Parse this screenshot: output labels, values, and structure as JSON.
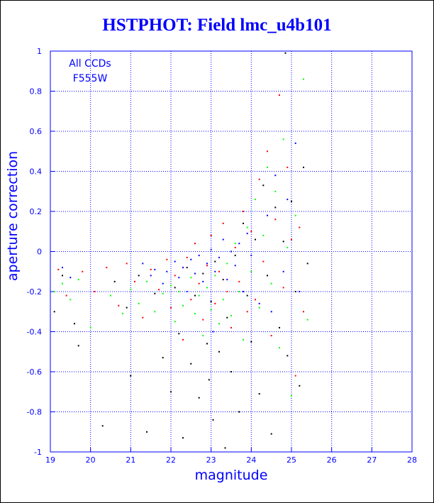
{
  "chart_data": {
    "type": "scatter",
    "title": "HSTPHOT: Field lmc_u4b101",
    "xlabel": "magnitude",
    "ylabel": "aperture correction",
    "xlim": [
      19,
      28
    ],
    "ylim": [
      -1,
      1
    ],
    "x_ticks": [
      "19",
      "20",
      "21",
      "22",
      "23",
      "24",
      "25",
      "26",
      "27",
      "28"
    ],
    "y_ticks": [
      "-1",
      "-0.8",
      "-0.6",
      "-0.4",
      "-0.2",
      "0",
      "0.2",
      "0.4",
      "0.6",
      "0.8",
      "1"
    ],
    "grid": true,
    "annotations": [
      "All CCDs",
      "F555W"
    ],
    "colors": {
      "axes": "#0000ff",
      "grid": "#0000ff",
      "title": "#0000ff"
    },
    "series": [
      {
        "color": "#000000",
        "values": [
          [
            19.1,
            -0.3
          ],
          [
            19.3,
            -0.12
          ],
          [
            19.6,
            -0.36
          ],
          [
            19.7,
            -0.47
          ],
          [
            20.3,
            -0.87
          ],
          [
            20.6,
            -0.15
          ],
          [
            20.9,
            -0.28
          ],
          [
            21.0,
            -0.62
          ],
          [
            21.2,
            -0.12
          ],
          [
            21.4,
            -0.9
          ],
          [
            21.6,
            -0.21
          ],
          [
            21.8,
            -0.53
          ],
          [
            22.0,
            -0.7
          ],
          [
            22.1,
            -0.18
          ],
          [
            22.2,
            -0.41
          ],
          [
            22.3,
            -0.93
          ],
          [
            22.4,
            -0.08
          ],
          [
            22.5,
            -0.56
          ],
          [
            22.6,
            -0.22
          ],
          [
            22.7,
            -0.73
          ],
          [
            22.8,
            -0.11
          ],
          [
            22.9,
            -0.46
          ],
          [
            22.95,
            -0.64
          ],
          [
            23.0,
            -0.25
          ],
          [
            23.05,
            -0.84
          ],
          [
            23.1,
            -0.05
          ],
          [
            23.2,
            -0.5
          ],
          [
            23.3,
            -0.14
          ],
          [
            23.35,
            -0.98
          ],
          [
            23.4,
            -0.33
          ],
          [
            23.5,
            -0.6
          ],
          [
            23.6,
            -0.02
          ],
          [
            23.7,
            -0.8
          ],
          [
            23.8,
            0.14
          ],
          [
            23.9,
            -0.22
          ],
          [
            24.0,
            -0.45
          ],
          [
            24.1,
            0.06
          ],
          [
            24.2,
            -0.71
          ],
          [
            24.3,
            0.33
          ],
          [
            24.4,
            -0.12
          ],
          [
            24.5,
            -0.91
          ],
          [
            24.6,
            0.22
          ],
          [
            24.7,
            -0.38
          ],
          [
            24.8,
            0.05
          ],
          [
            24.85,
            0.99
          ],
          [
            24.9,
            -0.52
          ],
          [
            25.0,
            0.25
          ],
          [
            25.1,
            -0.2
          ],
          [
            25.2,
            -0.67
          ],
          [
            25.3,
            0.42
          ],
          [
            25.4,
            -0.06
          ]
        ]
      },
      {
        "color": "#ff0000",
        "values": [
          [
            19.2,
            -0.09
          ],
          [
            19.4,
            -0.22
          ],
          [
            19.8,
            -0.1
          ],
          [
            20.1,
            -0.2
          ],
          [
            20.4,
            -0.08
          ],
          [
            20.7,
            -0.27
          ],
          [
            20.9,
            -0.06
          ],
          [
            21.1,
            -0.15
          ],
          [
            21.3,
            -0.33
          ],
          [
            21.5,
            -0.09
          ],
          [
            21.7,
            -0.19
          ],
          [
            21.9,
            -0.04
          ],
          [
            22.0,
            -0.28
          ],
          [
            22.1,
            -0.12
          ],
          [
            22.3,
            -0.44
          ],
          [
            22.4,
            -0.03
          ],
          [
            22.5,
            -0.24
          ],
          [
            22.6,
            0.04
          ],
          [
            22.7,
            -0.16
          ],
          [
            22.8,
            -0.34
          ],
          [
            22.9,
            -0.07
          ],
          [
            23.0,
            0.08
          ],
          [
            23.1,
            -0.26
          ],
          [
            23.2,
            -0.1
          ],
          [
            23.3,
            0.14
          ],
          [
            23.4,
            -0.2
          ],
          [
            23.5,
            -0.38
          ],
          [
            23.6,
            0.02
          ],
          [
            23.7,
            -0.15
          ],
          [
            23.8,
            0.2
          ],
          [
            23.9,
            -0.3
          ],
          [
            24.0,
            0.1
          ],
          [
            24.1,
            -0.24
          ],
          [
            24.2,
            0.36
          ],
          [
            24.3,
            -0.05
          ],
          [
            24.4,
            0.5
          ],
          [
            24.5,
            -0.42
          ],
          [
            24.6,
            0.16
          ],
          [
            24.7,
            0.78
          ],
          [
            24.8,
            -0.18
          ],
          [
            24.9,
            0.42
          ],
          [
            25.0,
            0.06
          ],
          [
            25.1,
            -0.62
          ],
          [
            25.2,
            0.12
          ],
          [
            25.3,
            -0.3
          ]
        ]
      },
      {
        "color": "#00ff00",
        "values": [
          [
            19.1,
            -0.2
          ],
          [
            19.3,
            -0.16
          ],
          [
            19.5,
            -0.24
          ],
          [
            19.7,
            -0.14
          ],
          [
            20.0,
            -0.38
          ],
          [
            20.5,
            -0.22
          ],
          [
            20.8,
            -0.31
          ],
          [
            21.0,
            -0.19
          ],
          [
            21.2,
            -0.26
          ],
          [
            21.4,
            -0.15
          ],
          [
            21.6,
            -0.3
          ],
          [
            21.8,
            -0.21
          ],
          [
            22.0,
            -0.17
          ],
          [
            22.1,
            -0.35
          ],
          [
            22.2,
            -0.2
          ],
          [
            22.3,
            -0.27
          ],
          [
            22.5,
            -0.13
          ],
          [
            22.6,
            -0.31
          ],
          [
            22.7,
            -0.22
          ],
          [
            22.8,
            -0.42
          ],
          [
            22.9,
            -0.18
          ],
          [
            23.0,
            -0.29
          ],
          [
            23.1,
            -0.12
          ],
          [
            23.2,
            -0.36
          ],
          [
            23.3,
            -0.24
          ],
          [
            23.4,
            -0.06
          ],
          [
            23.5,
            -0.32
          ],
          [
            23.6,
            0.04
          ],
          [
            23.7,
            -0.2
          ],
          [
            23.8,
            -0.44
          ],
          [
            23.9,
            0.12
          ],
          [
            24.0,
            -0.1
          ],
          [
            24.1,
            0.26
          ],
          [
            24.2,
            -0.28
          ],
          [
            24.3,
            0.08
          ],
          [
            24.4,
            0.42
          ],
          [
            24.5,
            -0.16
          ],
          [
            24.6,
            0.3
          ],
          [
            24.7,
            -0.48
          ],
          [
            24.8,
            0.56
          ],
          [
            24.9,
            0.02
          ],
          [
            25.0,
            -0.72
          ],
          [
            25.1,
            0.18
          ],
          [
            25.3,
            0.86
          ],
          [
            25.4,
            -0.34
          ]
        ]
      },
      {
        "color": "#0000ff",
        "values": [
          [
            19.3,
            -0.08
          ],
          [
            19.5,
            -0.13
          ],
          [
            21.3,
            -0.06
          ],
          [
            21.5,
            -0.12
          ],
          [
            21.6,
            -0.09
          ],
          [
            21.8,
            -0.16
          ],
          [
            21.9,
            -0.1
          ],
          [
            22.1,
            -0.05
          ],
          [
            22.2,
            -0.13
          ],
          [
            22.3,
            -0.08
          ],
          [
            22.4,
            -0.2
          ],
          [
            22.5,
            -0.04
          ],
          [
            22.6,
            -0.11
          ],
          [
            22.7,
            -0.02
          ],
          [
            22.8,
            -0.15
          ],
          [
            22.9,
            -0.06
          ],
          [
            23.0,
            0.01
          ],
          [
            23.05,
            -0.4
          ],
          [
            23.1,
            -0.1
          ],
          [
            23.2,
            -0.03
          ],
          [
            23.3,
            0.06
          ],
          [
            23.4,
            -0.14
          ],
          [
            23.5,
            0.0
          ],
          [
            23.6,
            -0.07
          ],
          [
            23.7,
            0.04
          ],
          [
            23.8,
            -0.2
          ],
          [
            23.9,
            0.09
          ],
          [
            24.0,
            -0.02
          ],
          [
            24.2,
            -0.26
          ],
          [
            24.4,
            0.18
          ],
          [
            24.5,
            -0.3
          ],
          [
            24.6,
            0.38
          ],
          [
            24.8,
            -0.1
          ],
          [
            24.9,
            0.26
          ],
          [
            25.1,
            0.54
          ],
          [
            25.2,
            -0.2
          ]
        ]
      }
    ]
  }
}
